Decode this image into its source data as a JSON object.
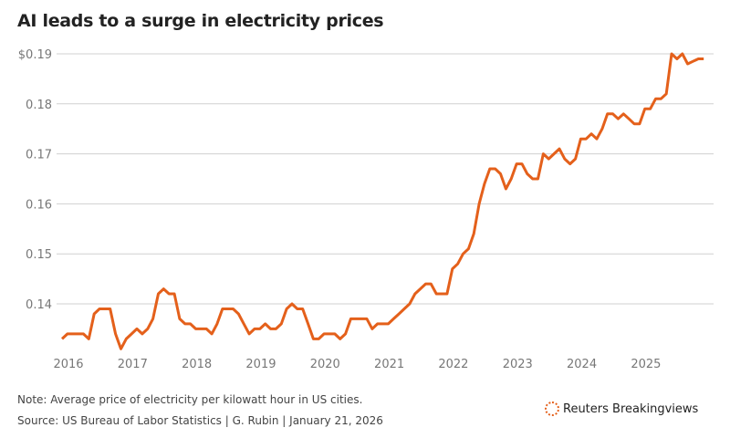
{
  "chart_data": {
    "type": "line",
    "title": "AI leads to a surge in electricity prices",
    "xlabel": "",
    "ylabel": "",
    "x_tick_labels": [
      "2016",
      "2017",
      "2018",
      "2019",
      "2020",
      "2021",
      "2022",
      "2023",
      "2024",
      "2025"
    ],
    "y_tick_labels": [
      "$0.19",
      "0.18",
      "0.17",
      "0.16",
      "0.15",
      "0.14"
    ],
    "y_ticks": [
      0.19,
      0.18,
      0.17,
      0.16,
      0.15,
      0.14
    ],
    "ylim": [
      0.1305,
      0.1915
    ],
    "x_start": "2016-01",
    "frequency": "monthly",
    "grid": true,
    "line_color": "#e4601b",
    "series": [
      {
        "values": [
          0.133,
          0.134,
          0.134,
          0.134,
          0.134,
          0.133,
          0.138,
          0.139,
          0.139,
          0.139,
          0.134,
          0.131,
          0.133,
          0.134,
          0.135,
          0.134,
          0.135,
          0.137,
          0.142,
          0.143,
          0.142,
          0.142,
          0.137,
          0.136,
          0.136,
          0.135,
          0.135,
          0.135,
          0.134,
          0.136,
          0.139,
          0.139,
          0.139,
          0.138,
          0.136,
          0.134,
          0.135,
          0.135,
          0.136,
          0.135,
          0.135,
          0.136,
          0.139,
          0.14,
          0.139,
          0.139,
          0.136,
          0.133,
          0.133,
          0.134,
          0.134,
          0.134,
          0.133,
          0.134,
          0.137,
          0.137,
          0.137,
          0.137,
          0.135,
          0.136,
          0.136,
          0.136,
          0.137,
          0.138,
          0.139,
          0.14,
          0.142,
          0.143,
          0.144,
          0.144,
          0.142,
          0.142,
          0.142,
          0.147,
          0.148,
          0.15,
          0.151,
          0.154,
          0.16,
          0.164,
          0.167,
          0.167,
          0.166,
          0.163,
          0.165,
          0.168,
          0.168,
          0.166,
          0.165,
          0.165,
          0.17,
          0.169,
          0.17,
          0.171,
          0.169,
          0.168,
          0.169,
          0.173,
          0.173,
          0.174,
          0.173,
          0.175,
          0.178,
          0.178,
          0.177,
          0.178,
          0.177,
          0.176,
          0.176,
          0.179,
          0.179,
          0.181,
          0.181,
          0.182,
          0.19,
          0.189,
          0.19,
          0.188,
          0.1885,
          0.189,
          0.189
        ]
      }
    ]
  },
  "note": "Note: Average price of electricity per kilowatt hour in US cities.",
  "source": "Source: US Bureau of Labor Statistics | G. Rubin | January 21, 2026",
  "logo_text": "Reuters Breakingviews"
}
